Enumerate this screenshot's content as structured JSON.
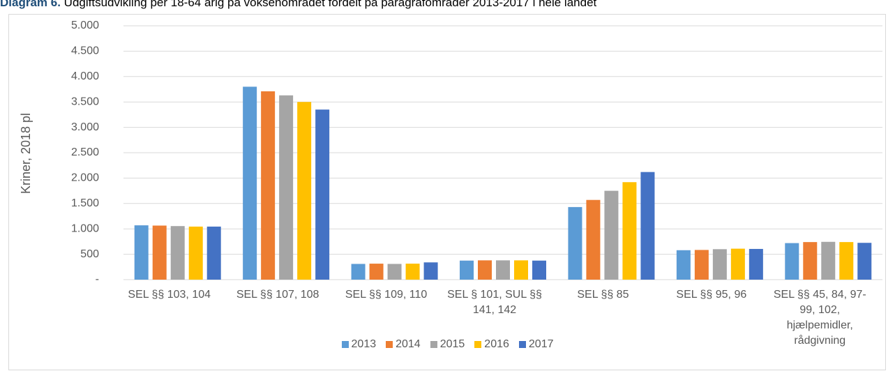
{
  "chart_data": {
    "type": "bar",
    "title_label": "Diagram 6.",
    "title": "Udgiftsudvikling per 18-64 årig på voksenområdet fordelt på paragrafområder 2013-2017 i hele landet",
    "ylabel": "Kriner, 2018 pl",
    "categories": [
      "SEL §§ 103, 104",
      "SEL §§ 107, 108",
      "SEL §§ 109, 110",
      "SEL § 101, SUL §§ 141, 142",
      "SEL §§ 85",
      "SEL §§ 95, 96",
      "SEL §§ 45, 84, 97-99, 102, hjælpemidler, rådgivning"
    ],
    "series": [
      {
        "name": "2013",
        "color": "#5b9bd5",
        "values": [
          1070,
          3800,
          310,
          375,
          1430,
          580,
          720
        ]
      },
      {
        "name": "2014",
        "color": "#ed7d31",
        "values": [
          1065,
          3710,
          315,
          380,
          1570,
          585,
          740
        ]
      },
      {
        "name": "2015",
        "color": "#a5a5a5",
        "values": [
          1055,
          3630,
          310,
          380,
          1750,
          600,
          745
        ]
      },
      {
        "name": "2016",
        "color": "#ffc000",
        "values": [
          1045,
          3500,
          315,
          380,
          1920,
          610,
          740
        ]
      },
      {
        "name": "2017",
        "color": "#4472c4",
        "values": [
          1045,
          3350,
          340,
          375,
          2120,
          605,
          725
        ]
      }
    ],
    "ylim": [
      0,
      5000
    ],
    "yticks": [
      {
        "value": 0,
        "label": "-"
      },
      500,
      {
        "value": 1000,
        "label": "1.000"
      },
      {
        "value": 1500,
        "label": "1.500"
      },
      {
        "value": 2000,
        "label": "2.000"
      },
      {
        "value": 2500,
        "label": "2.500"
      },
      {
        "value": 3000,
        "label": "3.000"
      },
      {
        "value": 3500,
        "label": "3.500"
      },
      {
        "value": 4000,
        "label": "4.000"
      },
      {
        "value": 4500,
        "label": "4.500"
      },
      {
        "value": 5000,
        "label": "5.000"
      }
    ],
    "grid": true,
    "legend": "bottom"
  }
}
